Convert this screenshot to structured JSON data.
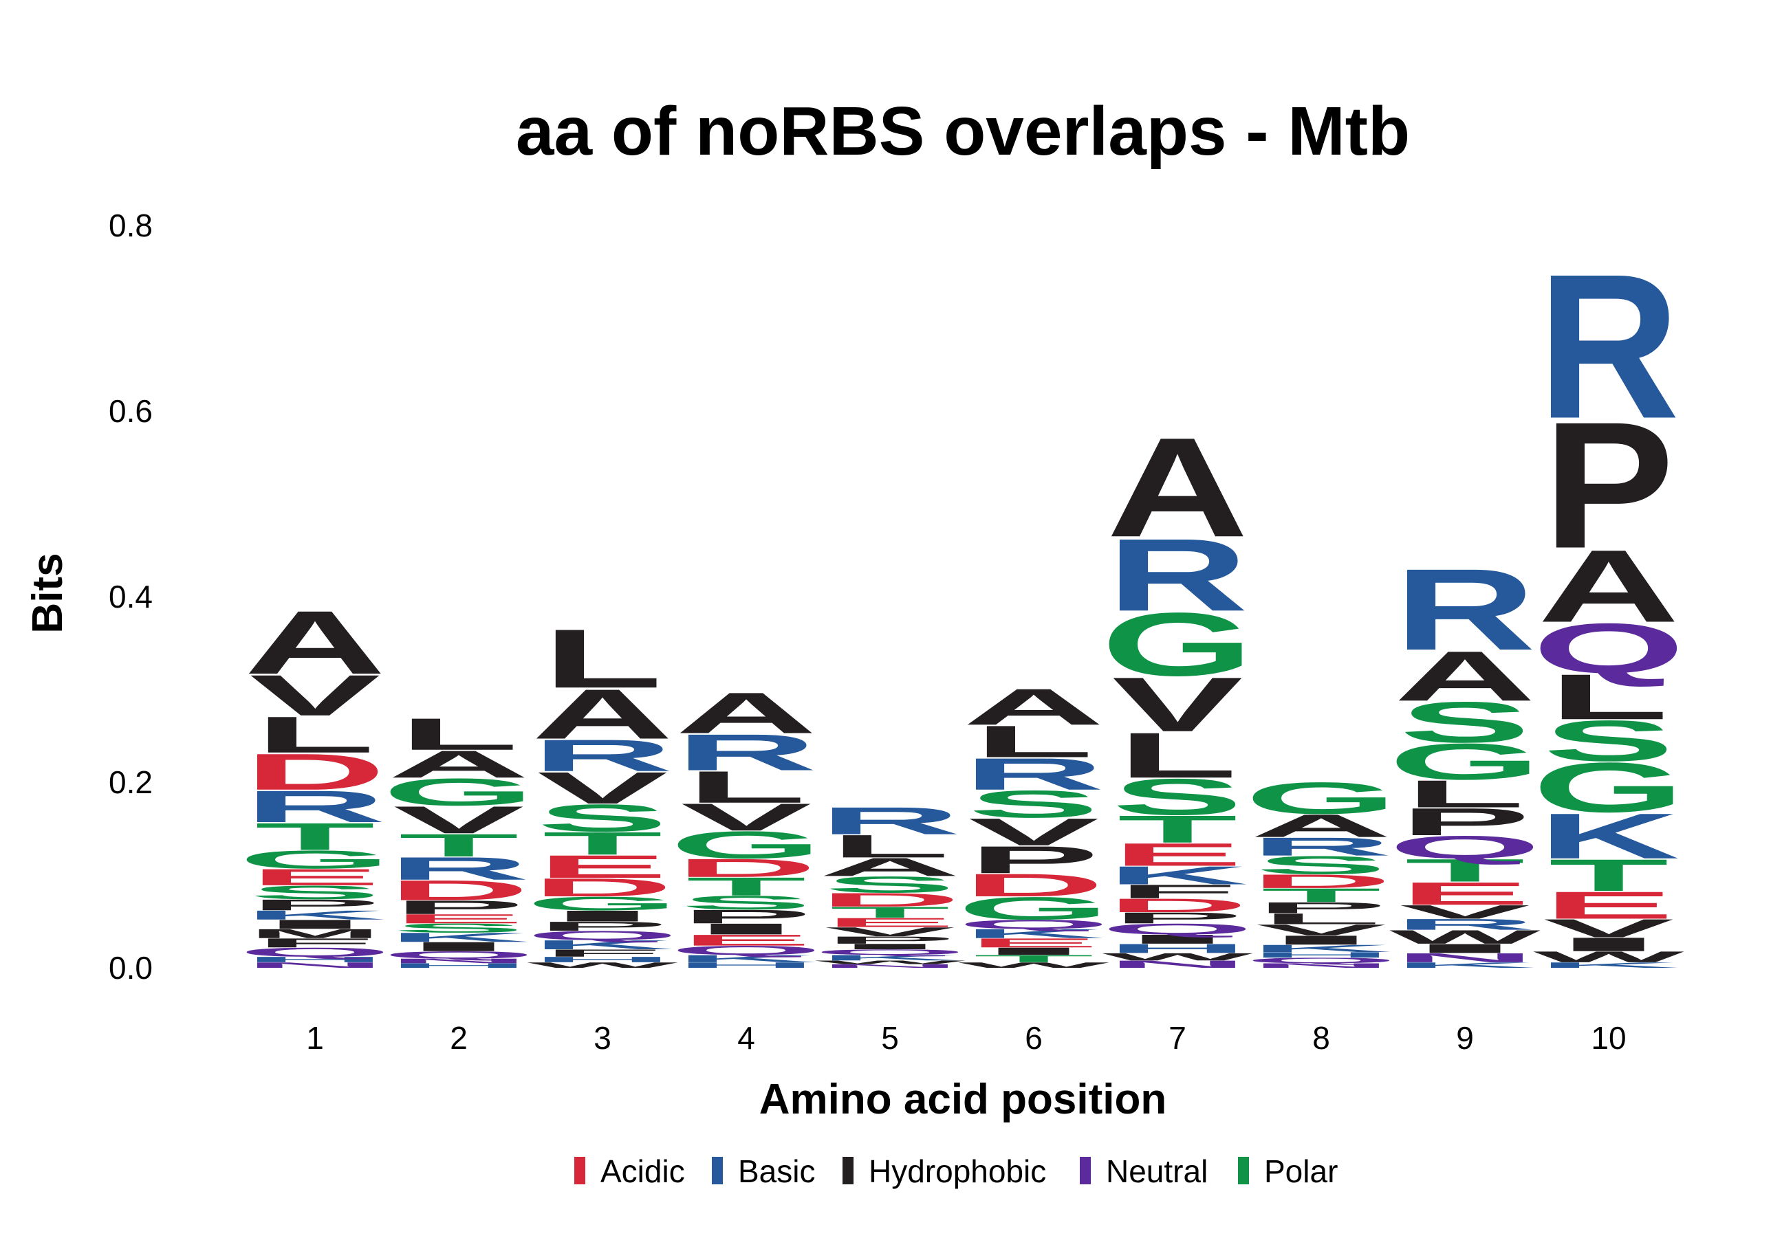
{
  "chart_data": {
    "type": "sequence-logo",
    "title": "aa of noRBS overlaps - Mtb",
    "xlabel": "Amino acid position",
    "ylabel": "Bits",
    "ylim": [
      0,
      0.8
    ],
    "yticks": [
      "0.0",
      "0.2",
      "0.4",
      "0.6",
      "0.8"
    ],
    "grid": false,
    "legend_position": "bottom",
    "colors": {
      "Acidic": "#d62839",
      "Basic": "#25599c",
      "Hydrophobic": "#231f20",
      "Neutral": "#5b2a9c",
      "Polar": "#0f9447"
    },
    "legend": [
      "Acidic",
      "Basic",
      "Hydrophobic",
      "Neutral",
      "Polar"
    ],
    "classes": {
      "A": "Hydrophobic",
      "V": "Hydrophobic",
      "L": "Hydrophobic",
      "I": "Hydrophobic",
      "P": "Hydrophobic",
      "F": "Hydrophobic",
      "M": "Hydrophobic",
      "W": "Hydrophobic",
      "D": "Acidic",
      "E": "Acidic",
      "R": "Basic",
      "K": "Basic",
      "H": "Basic",
      "Q": "Neutral",
      "N": "Neutral",
      "G": "Polar",
      "S": "Polar",
      "T": "Polar",
      "C": "Polar",
      "Y": "Polar"
    },
    "positions": [
      {
        "label": "1",
        "stack": [
          {
            "letter": "N",
            "height": 0.006
          },
          {
            "letter": "H",
            "height": 0.006
          },
          {
            "letter": "Q",
            "height": 0.01
          },
          {
            "letter": "F",
            "height": 0.01
          },
          {
            "letter": "M",
            "height": 0.01
          },
          {
            "letter": "I",
            "height": 0.01
          },
          {
            "letter": "K",
            "height": 0.01
          },
          {
            "letter": "P",
            "height": 0.012
          },
          {
            "letter": "S",
            "height": 0.015
          },
          {
            "letter": "E",
            "height": 0.018
          },
          {
            "letter": "G",
            "height": 0.02
          },
          {
            "letter": "T",
            "height": 0.03
          },
          {
            "letter": "R",
            "height": 0.035
          },
          {
            "letter": "D",
            "height": 0.04
          },
          {
            "letter": "L",
            "height": 0.04
          },
          {
            "letter": "V",
            "height": 0.045
          },
          {
            "letter": "A",
            "height": 0.07
          }
        ]
      },
      {
        "label": "2",
        "stack": [
          {
            "letter": "H",
            "height": 0.005
          },
          {
            "letter": "N",
            "height": 0.005
          },
          {
            "letter": "Q",
            "height": 0.008
          },
          {
            "letter": "I",
            "height": 0.01
          },
          {
            "letter": "K",
            "height": 0.01
          },
          {
            "letter": "S",
            "height": 0.01
          },
          {
            "letter": "E",
            "height": 0.01
          },
          {
            "letter": "P",
            "height": 0.015
          },
          {
            "letter": "D",
            "height": 0.022
          },
          {
            "letter": "R",
            "height": 0.025
          },
          {
            "letter": "T",
            "height": 0.025
          },
          {
            "letter": "V",
            "height": 0.03
          },
          {
            "letter": "G",
            "height": 0.03
          },
          {
            "letter": "A",
            "height": 0.03
          },
          {
            "letter": "L",
            "height": 0.035
          }
        ]
      },
      {
        "label": "3",
        "stack": [
          {
            "letter": "W",
            "height": 0.006
          },
          {
            "letter": "H",
            "height": 0.006
          },
          {
            "letter": "F",
            "height": 0.008
          },
          {
            "letter": "K",
            "height": 0.01
          },
          {
            "letter": "Q",
            "height": 0.01
          },
          {
            "letter": "P",
            "height": 0.01
          },
          {
            "letter": "I",
            "height": 0.012
          },
          {
            "letter": "G",
            "height": 0.015
          },
          {
            "letter": "D",
            "height": 0.02
          },
          {
            "letter": "E",
            "height": 0.025
          },
          {
            "letter": "T",
            "height": 0.025
          },
          {
            "letter": "S",
            "height": 0.03
          },
          {
            "letter": "V",
            "height": 0.035
          },
          {
            "letter": "R",
            "height": 0.035
          },
          {
            "letter": "A",
            "height": 0.055
          },
          {
            "letter": "L",
            "height": 0.065
          }
        ]
      },
      {
        "label": "4",
        "stack": [
          {
            "letter": "H",
            "height": 0.006
          },
          {
            "letter": "K",
            "height": 0.008
          },
          {
            "letter": "Q",
            "height": 0.01
          },
          {
            "letter": "E",
            "height": 0.012
          },
          {
            "letter": "I",
            "height": 0.012
          },
          {
            "letter": "P",
            "height": 0.015
          },
          {
            "letter": "S",
            "height": 0.015
          },
          {
            "letter": "T",
            "height": 0.02
          },
          {
            "letter": "D",
            "height": 0.02
          },
          {
            "letter": "G",
            "height": 0.03
          },
          {
            "letter": "V",
            "height": 0.03
          },
          {
            "letter": "L",
            "height": 0.035
          },
          {
            "letter": "R",
            "height": 0.04
          },
          {
            "letter": "A",
            "height": 0.045
          }
        ]
      },
      {
        "label": "5",
        "stack": [
          {
            "letter": "N",
            "height": 0.004
          },
          {
            "letter": "W",
            "height": 0.004
          },
          {
            "letter": "K",
            "height": 0.006
          },
          {
            "letter": "Q",
            "height": 0.006
          },
          {
            "letter": "I",
            "height": 0.006
          },
          {
            "letter": "P",
            "height": 0.008
          },
          {
            "letter": "V",
            "height": 0.01
          },
          {
            "letter": "E",
            "height": 0.01
          },
          {
            "letter": "T",
            "height": 0.012
          },
          {
            "letter": "D",
            "height": 0.015
          },
          {
            "letter": "S",
            "height": 0.018
          },
          {
            "letter": "A",
            "height": 0.02
          },
          {
            "letter": "L",
            "height": 0.025
          },
          {
            "letter": "R",
            "height": 0.03
          }
        ]
      },
      {
        "label": "6",
        "stack": [
          {
            "letter": "W",
            "height": 0.006
          },
          {
            "letter": "T",
            "height": 0.008
          },
          {
            "letter": "I",
            "height": 0.008
          },
          {
            "letter": "E",
            "height": 0.01
          },
          {
            "letter": "K",
            "height": 0.01
          },
          {
            "letter": "Q",
            "height": 0.01
          },
          {
            "letter": "G",
            "height": 0.025
          },
          {
            "letter": "D",
            "height": 0.025
          },
          {
            "letter": "P",
            "height": 0.03
          },
          {
            "letter": "V",
            "height": 0.03
          },
          {
            "letter": "S",
            "height": 0.03
          },
          {
            "letter": "R",
            "height": 0.035
          },
          {
            "letter": "L",
            "height": 0.035
          },
          {
            "letter": "A",
            "height": 0.04
          }
        ]
      },
      {
        "label": "7",
        "stack": [
          {
            "letter": "N",
            "height": 0.008
          },
          {
            "letter": "W",
            "height": 0.008
          },
          {
            "letter": "H",
            "height": 0.01
          },
          {
            "letter": "I",
            "height": 0.01
          },
          {
            "letter": "Q",
            "height": 0.012
          },
          {
            "letter": "P",
            "height": 0.012
          },
          {
            "letter": "D",
            "height": 0.015
          },
          {
            "letter": "F",
            "height": 0.015
          },
          {
            "letter": "K",
            "height": 0.02
          },
          {
            "letter": "E",
            "height": 0.025
          },
          {
            "letter": "T",
            "height": 0.03
          },
          {
            "letter": "S",
            "height": 0.04
          },
          {
            "letter": "L",
            "height": 0.05
          },
          {
            "letter": "V",
            "height": 0.06
          },
          {
            "letter": "G",
            "height": 0.07
          },
          {
            "letter": "R",
            "height": 0.08
          },
          {
            "letter": "A",
            "height": 0.11
          }
        ]
      },
      {
        "label": "8",
        "stack": [
          {
            "letter": "N",
            "height": 0.005
          },
          {
            "letter": "Q",
            "height": 0.006
          },
          {
            "letter": "H",
            "height": 0.006
          },
          {
            "letter": "K",
            "height": 0.008
          },
          {
            "letter": "I",
            "height": 0.01
          },
          {
            "letter": "V",
            "height": 0.012
          },
          {
            "letter": "L",
            "height": 0.012
          },
          {
            "letter": "P",
            "height": 0.012
          },
          {
            "letter": "T",
            "height": 0.015
          },
          {
            "letter": "D",
            "height": 0.015
          },
          {
            "letter": "S",
            "height": 0.02
          },
          {
            "letter": "R",
            "height": 0.02
          },
          {
            "letter": "A",
            "height": 0.025
          },
          {
            "letter": "G",
            "height": 0.035
          }
        ]
      },
      {
        "label": "9",
        "stack": [
          {
            "letter": "K",
            "height": 0.006
          },
          {
            "letter": "N",
            "height": 0.01
          },
          {
            "letter": "I",
            "height": 0.01
          },
          {
            "letter": "W",
            "height": 0.015
          },
          {
            "letter": "R",
            "height": 0.012
          },
          {
            "letter": "V",
            "height": 0.015
          },
          {
            "letter": "E",
            "height": 0.025
          },
          {
            "letter": "T",
            "height": 0.025
          },
          {
            "letter": "Q",
            "height": 0.025
          },
          {
            "letter": "P",
            "height": 0.03
          },
          {
            "letter": "L",
            "height": 0.03
          },
          {
            "letter": "G",
            "height": 0.04
          },
          {
            "letter": "S",
            "height": 0.045
          },
          {
            "letter": "A",
            "height": 0.055
          },
          {
            "letter": "R",
            "height": 0.09
          }
        ]
      },
      {
        "label": "10",
        "stack": [
          {
            "letter": "K",
            "height": 0.006
          },
          {
            "letter": "W",
            "height": 0.012
          },
          {
            "letter": "I",
            "height": 0.015
          },
          {
            "letter": "V",
            "height": 0.02
          },
          {
            "letter": "E",
            "height": 0.03
          },
          {
            "letter": "T",
            "height": 0.035
          },
          {
            "letter": "K",
            "height": 0.05
          },
          {
            "letter": "G",
            "height": 0.055
          },
          {
            "letter": "S",
            "height": 0.045
          },
          {
            "letter": "L",
            "height": 0.05
          },
          {
            "letter": "Q",
            "height": 0.055
          },
          {
            "letter": "A",
            "height": 0.08
          },
          {
            "letter": "P",
            "height": 0.14
          },
          {
            "letter": "R",
            "height": 0.16
          }
        ]
      }
    ]
  }
}
